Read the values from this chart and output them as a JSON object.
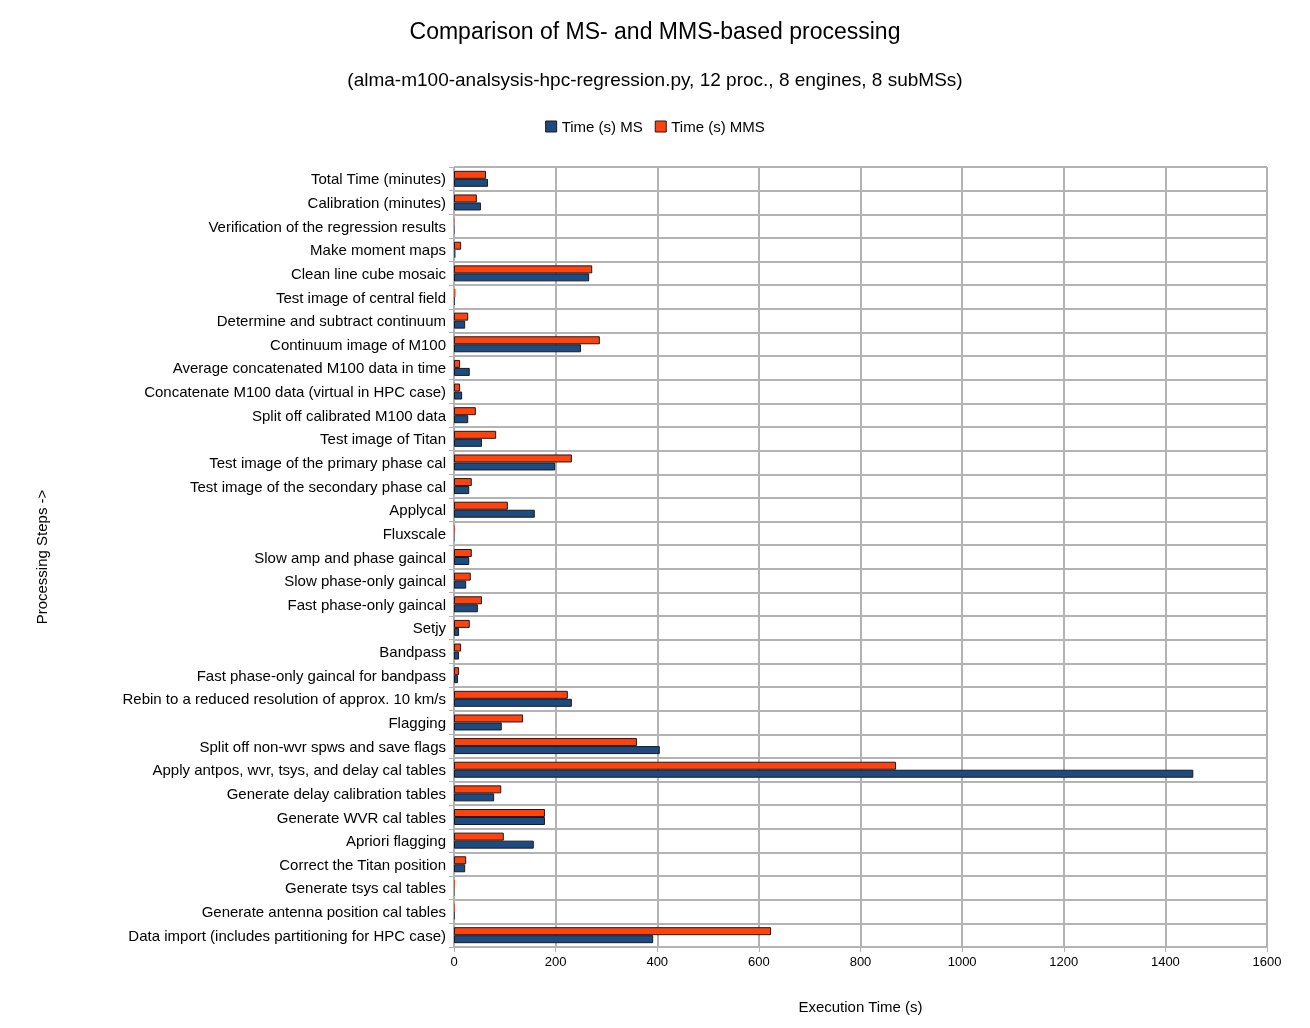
{
  "chart_data": {
    "type": "bar",
    "orientation": "horizontal",
    "title": "Comparison of MS- and MMS-based processing",
    "subtitle": "(alma-m100-analsysis-hpc-regression.py, 12 proc., 8 engines, 8 subMSs)",
    "xlabel": "Execution Time (s)",
    "ylabel": "Processing Steps ->",
    "categories": [
      "Total Time (minutes)",
      "Calibration (minutes)",
      "Verification of the regression results",
      "Make moment maps",
      "Clean line cube mosaic",
      "Test image of central field",
      "Determine and subtract continuum",
      "Continuum image of M100",
      "Average concatenated M100 data in time",
      "Concatenate M100 data (virtual in HPC case)",
      "Split off calibrated M100 data",
      "Test image of Titan",
      "Test image of the primary phase cal",
      "Test image of the secondary phase cal",
      "Applycal",
      "Fluxscale",
      "Slow amp and phase gaincal",
      "Slow phase-only gaincal",
      "Fast phase-only gaincal",
      "Setjy",
      "Bandpass",
      "Fast phase-only gaincal for bandpass",
      "Rebin to a reduced resolution of approx. 10 km/s",
      "Flagging",
      "Split off non-wvr spws and save flags",
      "Apply antpos, wvr, tsys, and delay cal tables",
      "Generate delay calibration tables",
      "Generate WVR cal tables",
      "Apriori flagging",
      "Correct the Titan position",
      "Generate tsys cal tables",
      "Generate antenna position cal tables",
      "Data import (includes partitioning for HPC case)"
    ],
    "series": [
      {
        "name": "Time (s) MS",
        "color": "#1c4b82",
        "values": [
          67,
          53,
          1,
          3,
          266,
          2,
          22,
          250,
          31,
          16,
          28,
          55,
          199,
          30,
          159,
          1,
          30,
          24,
          47,
          10,
          10,
          8,
          232,
          94,
          405,
          1455,
          79,
          179,
          157,
          22,
          1,
          2,
          392
        ]
      },
      {
        "name": "Time (s) MMS",
        "color": "#ff420e",
        "values": [
          63,
          45,
          1,
          14,
          272,
          3,
          28,
          287,
          12,
          12,
          43,
          83,
          232,
          35,
          106,
          2,
          35,
          33,
          55,
          31,
          14,
          10,
          224,
          136,
          360,
          870,
          93,
          179,
          98,
          24,
          2,
          2,
          624
        ]
      }
    ],
    "xlim": [
      0,
      1600
    ],
    "xticks": [
      0,
      200,
      400,
      600,
      800,
      1000,
      1200,
      1400,
      1600
    ],
    "grid": true,
    "legend": "top"
  }
}
